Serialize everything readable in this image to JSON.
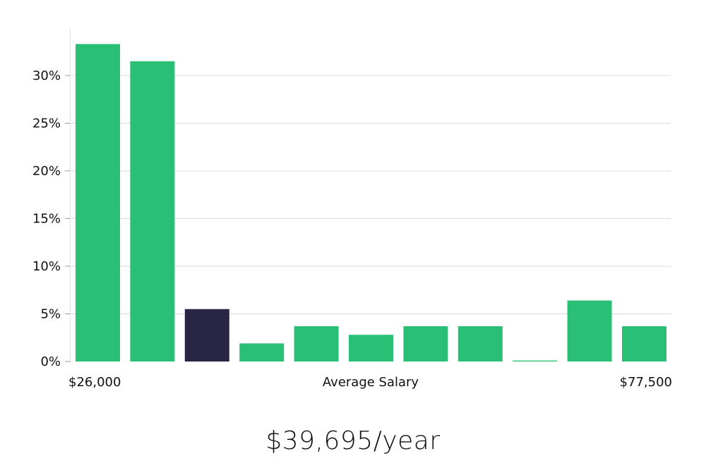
{
  "chart_data": {
    "type": "bar",
    "title": "",
    "xlabel": "Average Salary",
    "ylabel": "",
    "x_range_labels": {
      "min": "$26,000",
      "max": "$77,500"
    },
    "y_ticks": [
      {
        "value": 0,
        "label": "0%"
      },
      {
        "value": 5,
        "label": "5%"
      },
      {
        "value": 10,
        "label": "10%"
      },
      {
        "value": 15,
        "label": "15%"
      },
      {
        "value": 20,
        "label": "20%"
      },
      {
        "value": 25,
        "label": "25%"
      },
      {
        "value": 30,
        "label": "30%"
      }
    ],
    "ylim": [
      0,
      35
    ],
    "grid": true,
    "values": [
      33.3,
      31.5,
      5.5,
      1.9,
      3.7,
      2.8,
      3.7,
      3.7,
      0.1,
      6.4,
      3.7
    ],
    "highlight_index": 2,
    "colors": {
      "bar": "#29bf75",
      "bar_highlight": "#282545",
      "grid": "#d9d9d9",
      "axis": "#cccccc"
    }
  },
  "readout": {
    "salary": "$39,695/year"
  }
}
